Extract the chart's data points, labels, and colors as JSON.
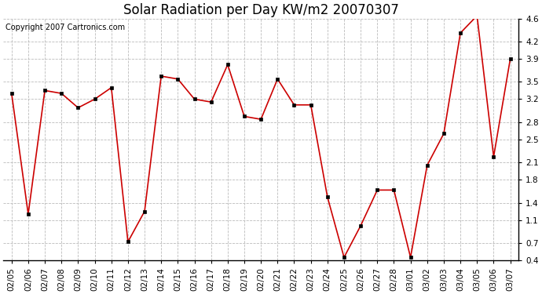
{
  "title": "Solar Radiation per Day KW/m2 20070307",
  "copyright": "Copyright 2007 Cartronics.com",
  "dates": [
    "02/05",
    "02/06",
    "02/07",
    "02/08",
    "02/09",
    "02/10",
    "02/11",
    "02/12",
    "02/13",
    "02/14",
    "02/15",
    "02/16",
    "02/17",
    "02/18",
    "02/19",
    "02/20",
    "02/21",
    "02/22",
    "02/23",
    "02/24",
    "02/25",
    "02/26",
    "02/27",
    "02/28",
    "03/01",
    "03/02",
    "03/03",
    "03/04",
    "03/05",
    "03/06",
    "03/07"
  ],
  "values": [
    3.3,
    1.2,
    3.35,
    3.3,
    3.05,
    3.2,
    3.4,
    0.72,
    1.25,
    3.6,
    3.55,
    3.2,
    3.15,
    3.8,
    2.9,
    2.85,
    3.55,
    3.1,
    3.1,
    1.5,
    0.45,
    1.0,
    1.62,
    1.62,
    0.45,
    2.05,
    2.6,
    4.35,
    4.65,
    2.2,
    3.9
  ],
  "line_color": "#cc0000",
  "marker_color": "#000000",
  "bg_color": "#ffffff",
  "plot_bg_color": "#ffffff",
  "grid_color": "#bbbbbb",
  "ylim": [
    0.4,
    4.6
  ],
  "yticks": [
    0.4,
    0.7,
    1.1,
    1.4,
    1.8,
    2.1,
    2.5,
    2.8,
    3.2,
    3.5,
    3.9,
    4.2,
    4.6
  ],
  "title_fontsize": 12,
  "tick_fontsize": 7.5,
  "copyright_fontsize": 7
}
